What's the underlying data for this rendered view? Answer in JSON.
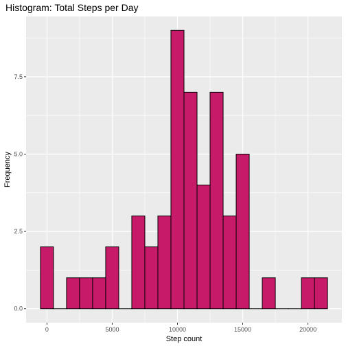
{
  "chart_data": {
    "type": "bar",
    "title": "Histogram: Total Steps per Day",
    "xlabel": "Step count",
    "ylabel": "Frequency",
    "bin_width": 1000,
    "bins": [
      {
        "center": 0,
        "count": 2
      },
      {
        "center": 1000,
        "count": 0
      },
      {
        "center": 2000,
        "count": 1
      },
      {
        "center": 3000,
        "count": 1
      },
      {
        "center": 4000,
        "count": 1
      },
      {
        "center": 5000,
        "count": 2
      },
      {
        "center": 6000,
        "count": 0
      },
      {
        "center": 7000,
        "count": 3
      },
      {
        "center": 8000,
        "count": 2
      },
      {
        "center": 9000,
        "count": 3
      },
      {
        "center": 10000,
        "count": 9
      },
      {
        "center": 11000,
        "count": 7
      },
      {
        "center": 12000,
        "count": 4
      },
      {
        "center": 13000,
        "count": 7
      },
      {
        "center": 14000,
        "count": 3
      },
      {
        "center": 15000,
        "count": 5
      },
      {
        "center": 16000,
        "count": 0
      },
      {
        "center": 17000,
        "count": 1
      },
      {
        "center": 18000,
        "count": 0
      },
      {
        "center": 19000,
        "count": 0
      },
      {
        "center": 20000,
        "count": 1
      },
      {
        "center": 21000,
        "count": 1
      }
    ],
    "x_ticks": [
      {
        "value": 0,
        "label": "0"
      },
      {
        "value": 5000,
        "label": "5000"
      },
      {
        "value": 10000,
        "label": "10000"
      },
      {
        "value": 15000,
        "label": "15000"
      },
      {
        "value": 20000,
        "label": "20000"
      }
    ],
    "y_ticks": [
      {
        "value": 0,
        "label": "0.0"
      },
      {
        "value": 2.5,
        "label": "2.5"
      },
      {
        "value": 5,
        "label": "5.0"
      },
      {
        "value": 7.5,
        "label": "7.5"
      }
    ],
    "xlim": [
      -1600,
      22600
    ],
    "ylim": [
      -0.45,
      9.45
    ],
    "grid": true,
    "colors": {
      "panel_background": "#ebebeb",
      "grid": "#ffffff",
      "bar_fill": "#c71b6a",
      "bar_outline": "#000000"
    }
  }
}
